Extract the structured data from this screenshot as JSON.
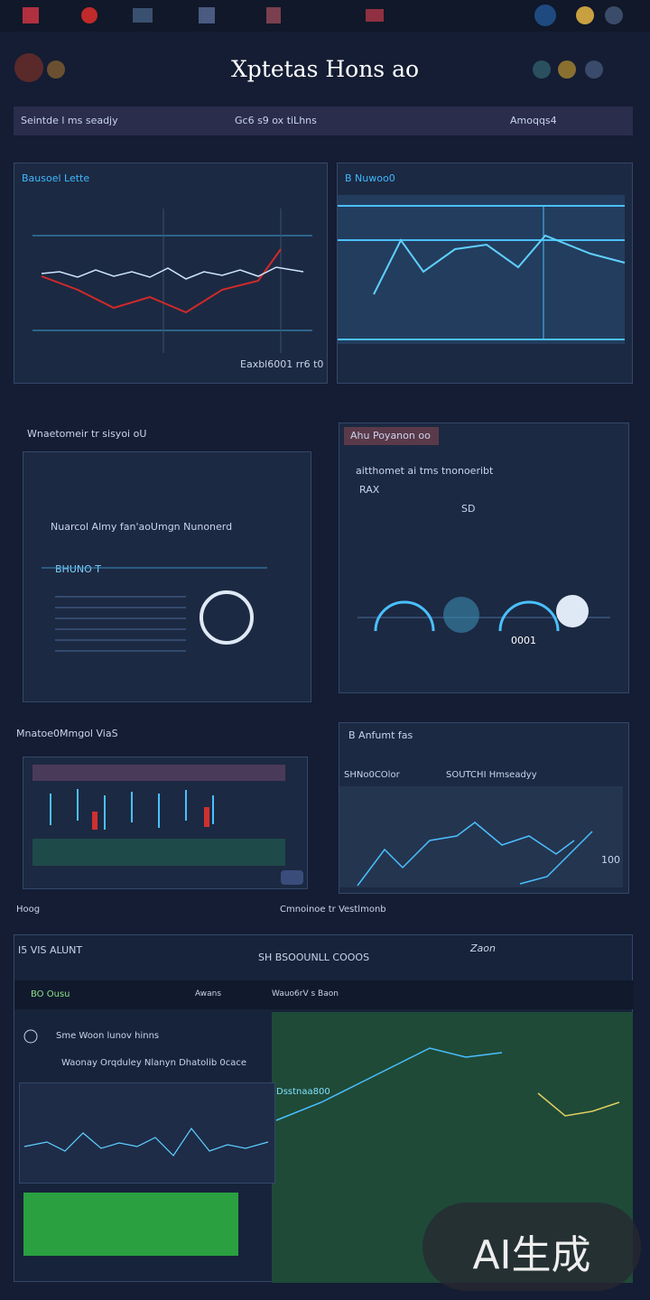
{
  "header": {
    "title": "Xptetas Hons ao",
    "toolbar": {
      "left": "Seintde l ms seadjy",
      "center": "Gc6 s9 ox tiLhns",
      "right": "Amoqqs4"
    }
  },
  "panels": [
    {
      "title": "Bausoel Lette",
      "footer": "Eaxbl6001 rr6 t0"
    },
    {
      "title": "B Nuwoo0"
    },
    {
      "section": "Wnaetomeir tr sisyoi oU",
      "title": "Nuarcol Almy fan'aoUmgn Nunonerd",
      "subtitle": "BHUNO T"
    },
    {
      "title": "Ahu Poyanon oo",
      "subtitle": "aitthomet ai tms tnonoeribt",
      "tag": "RAX",
      "label": "SD",
      "center": "0001"
    },
    {
      "section": "Mnatoe0Mmgol ViaS"
    },
    {
      "title": "B Anfumt fas",
      "left": "SHNo0COlor",
      "right": "SOUTCHI Hmseadyy",
      "value": "100"
    }
  ],
  "row": {
    "left": "Hoog",
    "center": "Cmnoinoe tr Vestlmonb"
  },
  "bottom": {
    "title": "I5 VIS ALUNT",
    "corner": "Zaon",
    "center": "SH BSOOUNLL COOOS",
    "tab": "BO Ousu",
    "menu": "Awans",
    "link": "Wauo6rV s Baon",
    "line1": "Sme Woon lunov hinns",
    "line2": "Waonay Orqduley Nlanyn Dhatolib 0cace",
    "chart": "Dsstnaa800"
  },
  "watermark": "AI生成"
}
